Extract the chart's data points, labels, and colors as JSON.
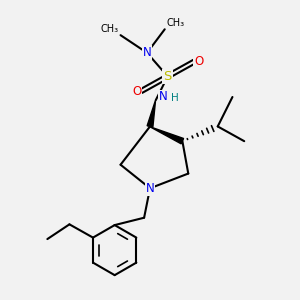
{
  "background_color": "#f2f2f2",
  "atom_colors": {
    "C": "#000000",
    "N": "#0000ee",
    "O": "#ee0000",
    "S": "#bbbb00",
    "H": "#008080"
  },
  "bond_color": "#000000",
  "bond_width": 1.5,
  "figsize": [
    3.0,
    3.0
  ],
  "dpi": 100
}
